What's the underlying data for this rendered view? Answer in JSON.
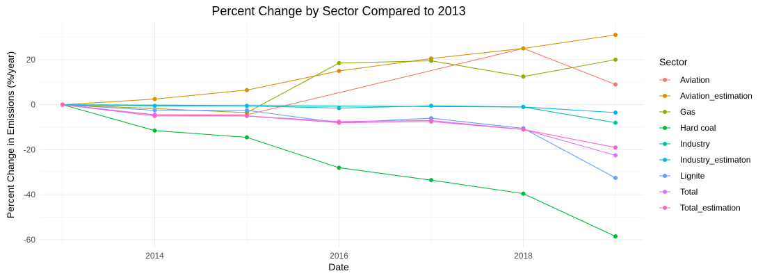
{
  "chart_data": {
    "type": "line",
    "title": "Percent Change by Sector Compared to 2013",
    "xlabel": "Date",
    "ylabel": "Percent Change in Emissions (%/year)",
    "xlim": [
      2013,
      2019
    ],
    "ylim": [
      -60,
      32
    ],
    "x_ticks": [
      2014,
      2016,
      2018
    ],
    "y_ticks": [
      -60,
      -40,
      -20,
      0,
      20
    ],
    "grid": true,
    "legend_title": "Sector",
    "legend_position": "right",
    "x": [
      2013,
      2014,
      2015,
      2016,
      2017,
      2018,
      2019
    ],
    "series": [
      {
        "name": "Aviation",
        "color": "#F8766D",
        "values": [
          0,
          -4.5,
          -4.5,
          null,
          null,
          25,
          9
        ]
      },
      {
        "name": "Aviation_estimation",
        "color": "#D39200",
        "values": [
          0,
          2.5,
          6.5,
          15,
          20.5,
          25,
          31
        ]
      },
      {
        "name": "Gas",
        "color": "#93AA00",
        "values": [
          0,
          null,
          -3.5,
          18.5,
          19.5,
          12.5,
          20
        ]
      },
      {
        "name": "Hard coal",
        "color": "#00BA38",
        "values": [
          0,
          -11.5,
          -14.5,
          -28,
          -33.5,
          -39.5,
          -58.5
        ]
      },
      {
        "name": "Industry",
        "color": "#00C19F",
        "values": [
          0,
          null,
          null,
          null,
          null,
          -1,
          -8
        ]
      },
      {
        "name": "Industry_estimaton",
        "color": "#00B9E3",
        "values": [
          0,
          -0.5,
          -0.5,
          -1.5,
          -0.5,
          -1,
          -3.5
        ]
      },
      {
        "name": "Lignite",
        "color": "#619CFF",
        "values": [
          0,
          -2.5,
          -2.5,
          -8,
          -6,
          -10.5,
          -32.5
        ]
      },
      {
        "name": "Total",
        "color": "#DB72FB",
        "values": [
          0,
          -4.5,
          -5,
          -7.5,
          -7,
          -11,
          -22.5
        ]
      },
      {
        "name": "Total_estimation",
        "color": "#FF61C3",
        "values": [
          0,
          -5,
          -5,
          -8,
          -7.5,
          -11,
          -19
        ]
      }
    ]
  }
}
